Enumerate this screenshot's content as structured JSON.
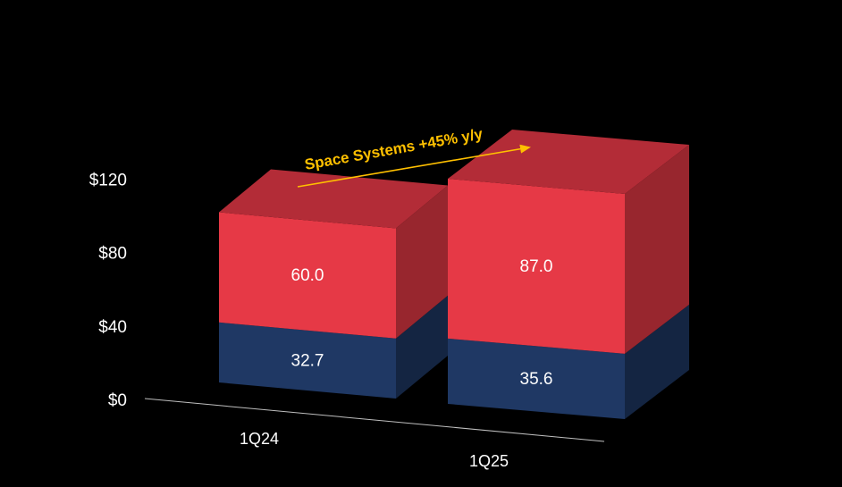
{
  "chart_data": {
    "type": "bar",
    "stacked": true,
    "three_d": true,
    "categories": [
      "1Q24",
      "1Q25"
    ],
    "series": [
      {
        "values": [
          32.7,
          35.6
        ],
        "color": "#1f3864"
      },
      {
        "values": [
          60.0,
          87.0
        ],
        "color": "#e63946"
      }
    ],
    "data_labels": [
      [
        "32.7",
        "35.6"
      ],
      [
        "60.0",
        "87.0"
      ]
    ],
    "y_ticks": [
      "$0",
      "$40",
      "$80",
      "$120"
    ],
    "y_tick_values": [
      0,
      40,
      80,
      120
    ],
    "ylim": [
      0,
      120
    ],
    "grid": false,
    "legend": "none",
    "annotation": {
      "text": "Space Systems +45% y/y",
      "color": "#ffc000"
    }
  }
}
